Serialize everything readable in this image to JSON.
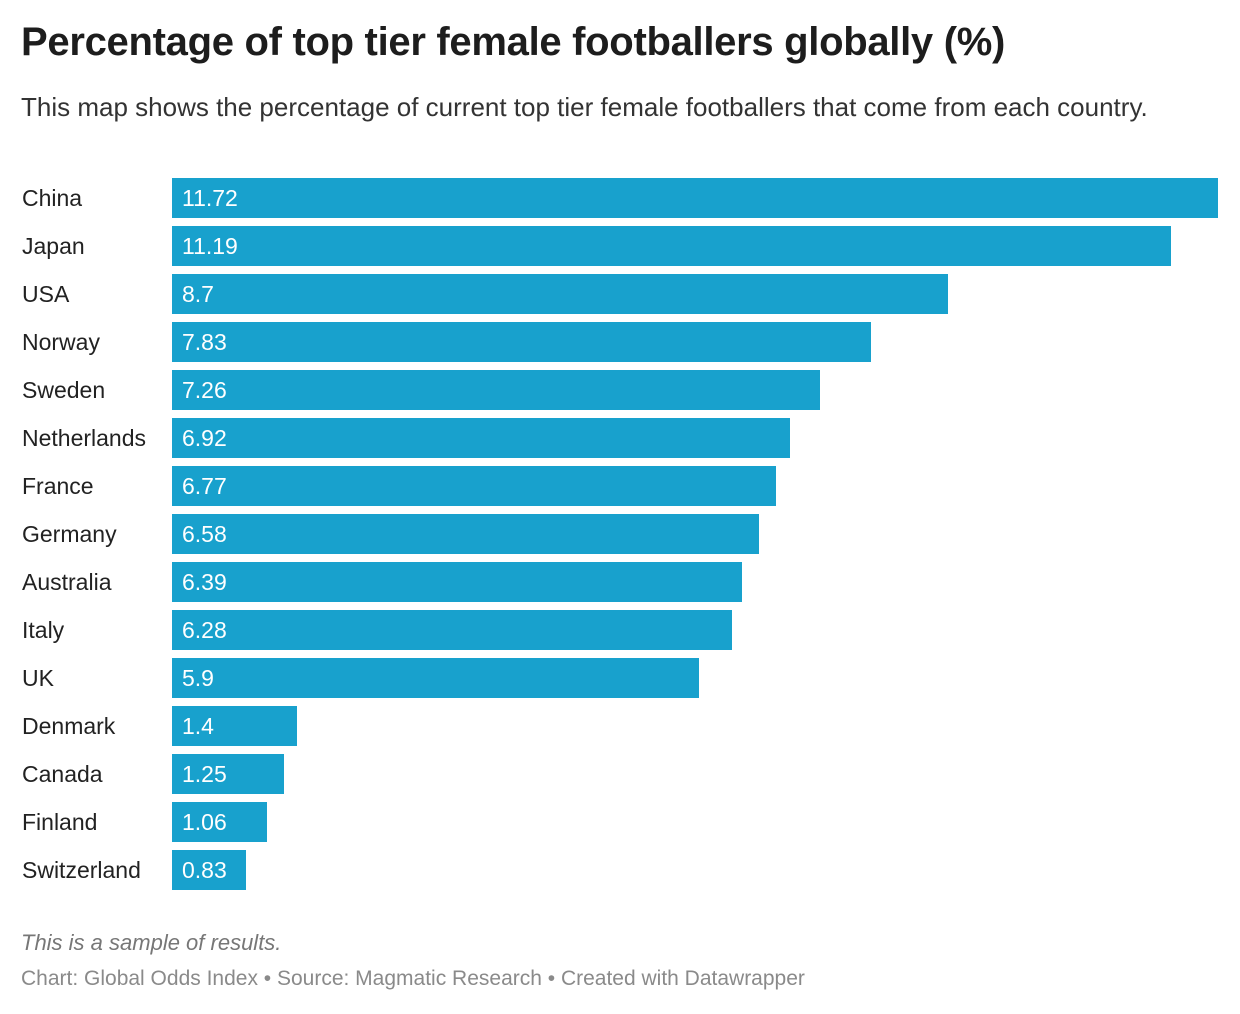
{
  "title": "Percentage of top tier female footballers globally (%)",
  "subtitle": "This map shows the percentage of current top tier female footballers that come from each country.",
  "notes": "This is a sample of results.",
  "footer": "Chart: Global Odds Index • Source: Magmatic Research • Created with Datawrapper",
  "chart_data": {
    "type": "bar",
    "orientation": "horizontal",
    "title": "Percentage of top tier female footballers globally (%)",
    "categories": [
      "China",
      "Japan",
      "USA",
      "Norway",
      "Sweden",
      "Netherlands",
      "France",
      "Germany",
      "Australia",
      "Italy",
      "UK",
      "Denmark",
      "Canada",
      "Finland",
      "Switzerland"
    ],
    "values": [
      11.72,
      11.19,
      8.7,
      7.83,
      7.26,
      6.92,
      6.77,
      6.58,
      6.39,
      6.28,
      5.9,
      1.4,
      1.25,
      1.06,
      0.83
    ],
    "value_labels": [
      "11.72",
      "11.19",
      "8.7",
      "7.83",
      "7.26",
      "6.92",
      "6.77",
      "6.58",
      "6.39",
      "6.28",
      "5.9",
      "1.4",
      "1.25",
      "1.06",
      "0.83"
    ],
    "xlim": [
      0,
      11.72
    ],
    "grid": false,
    "bar_color": "#18a1cd"
  }
}
